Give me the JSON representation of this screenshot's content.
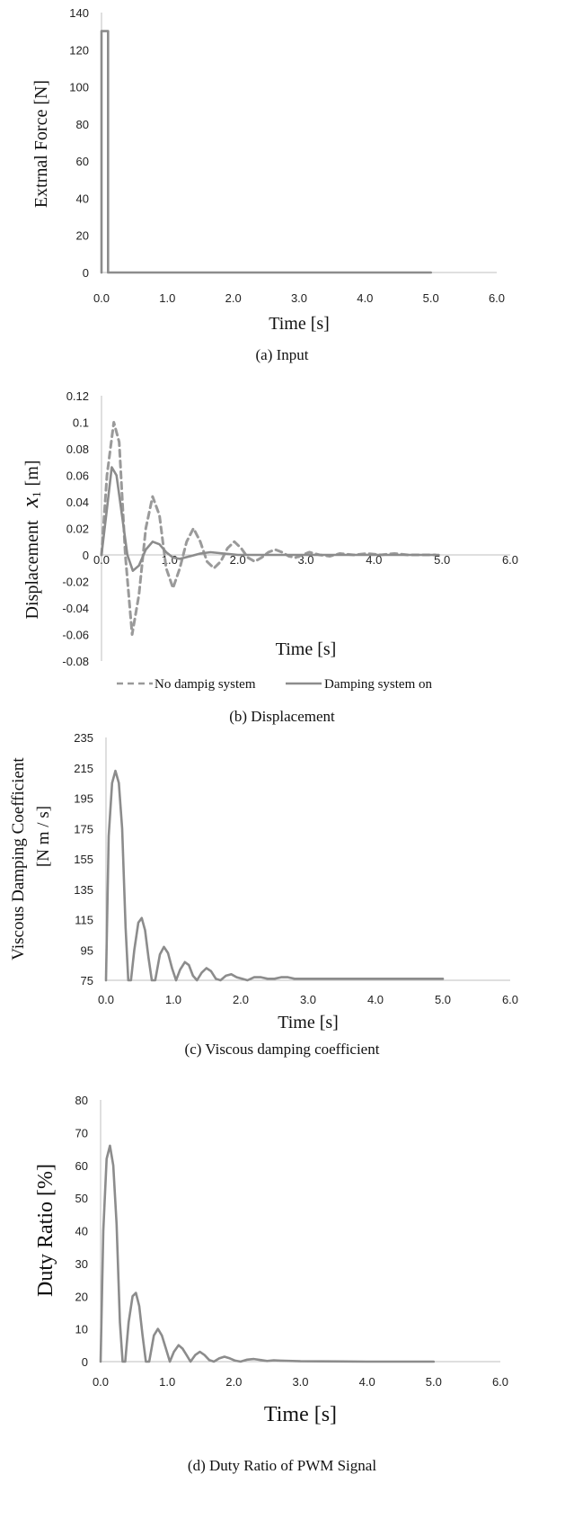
{
  "chart_data": [
    {
      "type": "line",
      "caption": "(a) Input",
      "xlabel": "Time [s]",
      "ylabel": "Extrnal Force [N]",
      "xlim": [
        0,
        6
      ],
      "ylim": [
        0,
        140
      ],
      "xticks": [
        "0.0",
        "1.0",
        "2.0",
        "3.0",
        "4.0",
        "5.0",
        "6.0"
      ],
      "yticks": [
        "0",
        "20",
        "40",
        "60",
        "80",
        "100",
        "120",
        "140"
      ],
      "grid": false,
      "series": [
        {
          "x": [
            0,
            0.0,
            0.1,
            0.1,
            5.0
          ],
          "y": [
            0,
            130,
            130,
            0,
            0
          ],
          "style": "solid",
          "color": "#8c8c8c"
        }
      ]
    },
    {
      "type": "line",
      "caption": "(b) Displacement",
      "xlabel": "Time [s]",
      "ylabel": "Displacement",
      "ylabel_symbol": "x",
      "ylabel_subscript": "1",
      "ylabel_unit": "[m]",
      "xlim": [
        0,
        6
      ],
      "ylim": [
        -0.08,
        0.12
      ],
      "xticks": [
        "0.0",
        "1.0",
        "2.0",
        "3.0",
        "4.0",
        "5.0",
        "6.0"
      ],
      "yticks": [
        "-0.08",
        "-0.06",
        "-0.04",
        "-0.02",
        "0",
        "0.02",
        "0.04",
        "0.06",
        "0.08",
        "0.1",
        "0.12"
      ],
      "legend_position": "bottom",
      "grid": false,
      "series": [
        {
          "name": "No dampig system",
          "style": "dashed",
          "color": "#9a9a9a",
          "x": [
            0,
            0.08,
            0.18,
            0.26,
            0.35,
            0.45,
            0.55,
            0.65,
            0.75,
            0.85,
            0.95,
            1.05,
            1.15,
            1.25,
            1.35,
            1.45,
            1.55,
            1.65,
            1.75,
            1.85,
            1.95,
            2.05,
            2.15,
            2.25,
            2.35,
            2.45,
            2.55,
            2.65,
            2.75,
            2.85,
            2.95,
            3.05,
            3.2,
            3.35,
            3.5,
            3.7,
            3.9,
            4.1,
            4.3,
            4.5,
            4.7,
            4.9
          ],
          "y": [
            0,
            0.06,
            0.1,
            0.085,
            0.0,
            -0.06,
            -0.03,
            0.02,
            0.044,
            0.03,
            -0.01,
            -0.025,
            -0.01,
            0.01,
            0.02,
            0.01,
            -0.005,
            -0.01,
            -0.005,
            0.005,
            0.01,
            0.005,
            -0.002,
            -0.005,
            -0.002,
            0.002,
            0.004,
            0.002,
            -0.001,
            -0.002,
            0.0,
            0.002,
            0.0,
            -0.001,
            0.001,
            0.0,
            0.001,
            0.0,
            0.001,
            0.0,
            0.0,
            0.0
          ]
        },
        {
          "name": "Damping system on",
          "style": "solid",
          "color": "#8c8c8c",
          "x": [
            0,
            0.08,
            0.15,
            0.22,
            0.3,
            0.38,
            0.46,
            0.55,
            0.65,
            0.75,
            0.85,
            0.95,
            1.05,
            1.15,
            1.3,
            1.45,
            1.6,
            1.8,
            2.0,
            2.3,
            2.6,
            3.0,
            3.5,
            4.0,
            4.5,
            4.95
          ],
          "y": [
            0,
            0.035,
            0.066,
            0.06,
            0.03,
            0.0,
            -0.012,
            -0.008,
            0.004,
            0.01,
            0.008,
            0.002,
            -0.002,
            -0.003,
            -0.001,
            0.001,
            0.002,
            0.001,
            0.0,
            0.0,
            0.0,
            0.0,
            0.0,
            0.0,
            0.0,
            0.0
          ]
        }
      ]
    },
    {
      "type": "line",
      "caption": "(c) Viscous damping coefficient",
      "xlabel": "Time [s]",
      "ylabel": "Viscous Damping Coefficient",
      "ylabel2": "[N m / s]",
      "xlim": [
        0,
        6
      ],
      "ylim": [
        75,
        235
      ],
      "xticks": [
        "0.0",
        "1.0",
        "2.0",
        "3.0",
        "4.0",
        "5.0",
        "6.0"
      ],
      "yticks": [
        "75",
        "95",
        "115",
        "135",
        "155",
        "175",
        "195",
        "215",
        "235"
      ],
      "grid": false,
      "series": [
        {
          "style": "solid",
          "color": "#8c8c8c",
          "x": [
            0,
            0.04,
            0.09,
            0.14,
            0.19,
            0.24,
            0.29,
            0.33,
            0.37,
            0.42,
            0.48,
            0.53,
            0.58,
            0.63,
            0.68,
            0.73,
            0.8,
            0.86,
            0.92,
            0.98,
            1.04,
            1.1,
            1.17,
            1.23,
            1.29,
            1.35,
            1.42,
            1.49,
            1.56,
            1.63,
            1.7,
            1.78,
            1.86,
            1.94,
            2.02,
            2.1,
            2.2,
            2.3,
            2.4,
            2.5,
            2.6,
            2.7,
            2.8,
            3.0,
            3.5,
            4.0,
            4.5,
            5.0
          ],
          "y": [
            75,
            170,
            205,
            213,
            205,
            175,
            110,
            75,
            75,
            95,
            113,
            116,
            108,
            90,
            75,
            75,
            92,
            97,
            93,
            83,
            75,
            82,
            87,
            85,
            78,
            75,
            80,
            83,
            81,
            76,
            75,
            78,
            79,
            77,
            76,
            75,
            77,
            77,
            76,
            76,
            77,
            77,
            76,
            76,
            76,
            76,
            76,
            76
          ]
        }
      ]
    },
    {
      "type": "line",
      "caption": "(d) Duty Ratio of PWM Signal",
      "xlabel": "Time [s]",
      "ylabel": "Duty Ratio [%]",
      "xlim": [
        0,
        6
      ],
      "ylim": [
        0,
        80
      ],
      "xticks": [
        "0.0",
        "1.0",
        "2.0",
        "3.0",
        "4.0",
        "5.0",
        "6.0"
      ],
      "yticks": [
        "0",
        "10",
        "20",
        "30",
        "40",
        "50",
        "60",
        "70",
        "80"
      ],
      "grid": false,
      "series": [
        {
          "style": "solid",
          "color": "#8c8c8c",
          "x": [
            0,
            0.04,
            0.09,
            0.14,
            0.19,
            0.24,
            0.29,
            0.33,
            0.37,
            0.42,
            0.48,
            0.53,
            0.58,
            0.63,
            0.68,
            0.73,
            0.8,
            0.86,
            0.92,
            0.98,
            1.04,
            1.1,
            1.17,
            1.23,
            1.29,
            1.35,
            1.42,
            1.49,
            1.56,
            1.63,
            1.7,
            1.78,
            1.86,
            1.94,
            2.02,
            2.1,
            2.2,
            2.3,
            2.4,
            2.5,
            2.6,
            2.7,
            3.0,
            4.0,
            5.0
          ],
          "y": [
            0,
            40,
            62,
            66,
            60,
            42,
            12,
            0,
            0,
            12,
            20,
            21,
            17,
            8,
            0,
            0,
            8,
            10,
            8,
            4,
            0,
            3,
            5,
            4,
            2,
            0,
            2,
            3,
            2,
            0.5,
            0,
            1,
            1.5,
            1,
            0.3,
            0,
            0.6,
            0.8,
            0.5,
            0.2,
            0.4,
            0.3,
            0.1,
            0,
            0
          ]
        }
      ]
    }
  ]
}
